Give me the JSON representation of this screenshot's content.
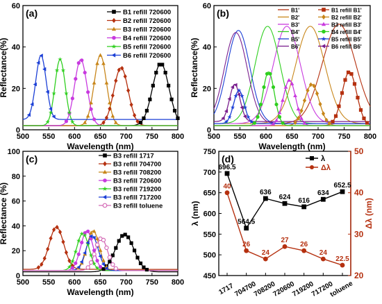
{
  "chart_data": [
    {
      "panel": "(a)",
      "type": "line",
      "xlabel": "Wavelength (nm)",
      "ylabel": "Reflectance(%)",
      "xlim": [
        500,
        800
      ],
      "ylim": [
        0,
        60
      ],
      "xticks": [
        500,
        550,
        600,
        650,
        700,
        750,
        800
      ],
      "yticks": [
        0,
        20,
        40,
        60
      ],
      "legend_position": "top-right",
      "series": [
        {
          "name": "B1 refill 720600",
          "color": "#000000",
          "marker": "square",
          "peak": 767,
          "height": 30,
          "width": 16,
          "base": 2
        },
        {
          "name": "B2 refill 720600",
          "color": "#b5300f",
          "marker": "diamond",
          "peak": 690,
          "height": 28,
          "width": 14,
          "base": 2
        },
        {
          "name": "B3 refill 720600",
          "color": "#c8861a",
          "marker": "triangle-up",
          "peak": 650,
          "height": 34,
          "width": 12,
          "base": 2
        },
        {
          "name": "B4 refill 720600",
          "color": "#c83adf",
          "marker": "circle",
          "peak": 612,
          "height": 32,
          "width": 12,
          "base": 2
        },
        {
          "name": "B5 refill 720600",
          "color": "#2fcf1f",
          "marker": "star",
          "peak": 572,
          "height": 32,
          "width": 10,
          "base": 2
        },
        {
          "name": "B6 refill 720600",
          "color": "#1b3fd6",
          "marker": "triangle-left",
          "peak": 535,
          "height": 31,
          "width": 10,
          "base": 5
        }
      ]
    },
    {
      "panel": "(b)",
      "type": "line",
      "xlabel": "Wavelength (nm)",
      "ylabel": "Reflectance(%)",
      "xlim": [
        500,
        800
      ],
      "ylim": [
        0,
        60
      ],
      "xticks": [
        500,
        550,
        600,
        650,
        700,
        750,
        800
      ],
      "yticks": [
        0,
        20,
        40,
        60
      ],
      "legend_position": "top-right",
      "series": [
        {
          "name": "B1'",
          "color": "#b5300f",
          "marker": "none",
          "peak": 740,
          "height": 48,
          "width": 32,
          "base": 3
        },
        {
          "name": "B2'",
          "color": "#c8861a",
          "marker": "none",
          "peak": 685,
          "height": 47,
          "width": 28,
          "base": 3
        },
        {
          "name": "B3'",
          "color": "#c83adf",
          "marker": "none",
          "peak": 640,
          "height": 47,
          "width": 26,
          "base": 3
        },
        {
          "name": "B4'",
          "color": "#2fcf1f",
          "marker": "none",
          "peak": 603,
          "height": 47,
          "width": 24,
          "base": 3
        },
        {
          "name": "B5'",
          "color": "#1b3fd6",
          "marker": "none",
          "peak": 547,
          "height": 45,
          "width": 22,
          "base": 3
        },
        {
          "name": "B6'",
          "color": "#7a1e8e",
          "marker": "none",
          "peak": 542,
          "height": 44,
          "width": 22,
          "base": 3
        },
        {
          "name": "B1 refill B1'",
          "color": "#b5300f",
          "marker": "square",
          "peak": 760,
          "height": 26,
          "width": 14,
          "base": 2
        },
        {
          "name": "B2 refill B2'",
          "color": "#c8861a",
          "marker": "diamond",
          "peak": 688,
          "height": 20,
          "width": 14,
          "base": 2
        },
        {
          "name": "B3 refill B3'",
          "color": "#c83adf",
          "marker": "triangle-up",
          "peak": 645,
          "height": 22,
          "width": 12,
          "base": 2
        },
        {
          "name": "B4 refill B4'",
          "color": "#2fcf1f",
          "marker": "circle",
          "peak": 605,
          "height": 26,
          "width": 11,
          "base": 2
        },
        {
          "name": "B5 refill B5'",
          "color": "#1b3fd6",
          "marker": "star",
          "peak": 548,
          "height": 16,
          "width": 10,
          "base": 3
        },
        {
          "name": "B6 refill B6'",
          "color": "#7a1e8e",
          "marker": "triangle-left",
          "peak": 540,
          "height": 18,
          "width": 10,
          "base": 4
        }
      ]
    },
    {
      "panel": "(c)",
      "type": "line",
      "xlabel": "Wavelength (nm)",
      "ylabel": "Reflectance (%)",
      "xlim": [
        500,
        800
      ],
      "ylim": [
        0,
        100
      ],
      "xticks": [
        500,
        550,
        600,
        650,
        700,
        750,
        800
      ],
      "yticks": [
        0,
        20,
        40,
        60,
        80,
        100
      ],
      "legend_position": "top-right",
      "series": [
        {
          "name": "B3 refill 1717",
          "color": "#000000",
          "marker": "square",
          "peak": 697,
          "height": 30,
          "width": 18,
          "base": 3
        },
        {
          "name": "B3 refill 704700",
          "color": "#b5300f",
          "marker": "diamond",
          "peak": 565,
          "height": 34,
          "width": 14,
          "base": 5
        },
        {
          "name": "B3 refill 708200",
          "color": "#c8861a",
          "marker": "triangle-up",
          "peak": 636,
          "height": 32,
          "width": 12,
          "base": 4
        },
        {
          "name": "B3 refill 720600",
          "color": "#c83adf",
          "marker": "circle",
          "peak": 624,
          "height": 32,
          "width": 12,
          "base": 4
        },
        {
          "name": "B3 refill 719200",
          "color": "#2fcf1f",
          "marker": "star",
          "peak": 616,
          "height": 30,
          "width": 12,
          "base": 4
        },
        {
          "name": "B3 refill 717200",
          "color": "#1b3fd6",
          "marker": "triangle-left",
          "peak": 634,
          "height": 28,
          "width": 12,
          "base": 4
        },
        {
          "name": "B3 refill toluene",
          "color": "#d46ab6",
          "marker": "open-circle",
          "peak": 652,
          "height": 26,
          "width": 12,
          "base": 4
        }
      ]
    },
    {
      "panel": "(d)",
      "type": "line",
      "categories": [
        "1717",
        "704700",
        "708200",
        "720600",
        "719200",
        "717200",
        "toluene"
      ],
      "ylabel": "λ (nm)",
      "y2label": "Δλ (nm)",
      "ylim": [
        450,
        750
      ],
      "y2lim": [
        20,
        50
      ],
      "yticks": [
        450,
        500,
        550,
        600,
        650,
        700,
        750
      ],
      "y2ticks": [
        20,
        30,
        40,
        50
      ],
      "legend_position": "top-right",
      "series": [
        {
          "name": "λ",
          "axis": "left",
          "color": "#000000",
          "marker": "square",
          "values": [
            696.5,
            564.5,
            636,
            624,
            616,
            634,
            652.5
          ],
          "labels": [
            "696.5",
            "564.5",
            "636",
            "624",
            "616",
            "634",
            "652.5"
          ]
        },
        {
          "name": "Δλ",
          "axis": "right",
          "color": "#b5300f",
          "marker": "circle",
          "values": [
            40,
            26,
            24,
            27,
            26,
            24,
            22.5
          ],
          "labels": [
            "40",
            "26",
            "24",
            "27",
            "26",
            "24",
            "22.5"
          ]
        }
      ]
    }
  ]
}
